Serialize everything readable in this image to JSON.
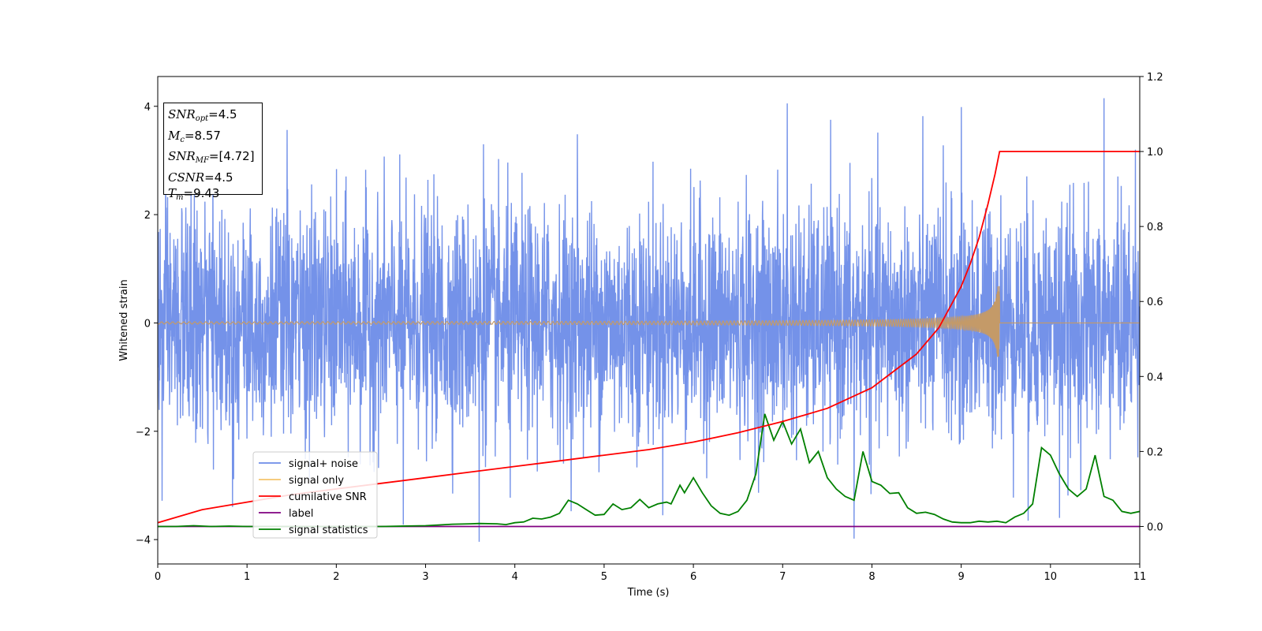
{
  "chart_data": {
    "type": "line",
    "title": "",
    "xlabel": "Time (s)",
    "ylabel": "Whitened strain",
    "y2label": "",
    "xlim": [
      0,
      11
    ],
    "ylim": [
      -4.45,
      4.55
    ],
    "y2lim": [
      -0.1,
      1.2
    ],
    "xticks": [
      0,
      1,
      2,
      3,
      4,
      5,
      6,
      7,
      8,
      9,
      10,
      11
    ],
    "yticks": [
      -4,
      -2,
      0,
      2,
      4
    ],
    "y2ticks": [
      0.0,
      0.2,
      0.4,
      0.6,
      0.8,
      1.0,
      1.2
    ],
    "legend_position": "lower-left",
    "grid": false,
    "merger_time": 9.43,
    "series": [
      {
        "name": "signal+ noise",
        "axis": "left",
        "color": "#6d8ce8",
        "kind": "noise",
        "sigma": 1.0,
        "spikes_high": [
          [
            1.45,
            3.55
          ],
          [
            3.65,
            3.3
          ],
          [
            4.7,
            3.5
          ],
          [
            7.05,
            4.05
          ],
          [
            8.8,
            3.35
          ],
          [
            9.0,
            3.9
          ],
          [
            10.6,
            4.15
          ],
          [
            10.95,
            3.2
          ]
        ],
        "spikes_low": [
          [
            0.05,
            -3.3
          ],
          [
            0.85,
            -2.9
          ],
          [
            2.75,
            -3.75
          ],
          [
            3.6,
            -4.05
          ],
          [
            3.95,
            -3.2
          ],
          [
            7.8,
            -3.95
          ],
          [
            9.75,
            -3.65
          ],
          [
            10.1,
            -3.6
          ]
        ]
      },
      {
        "name": "signal only",
        "axis": "left",
        "color": "#f5c46c",
        "kind": "chirp",
        "peak": 0.68,
        "start_amp": 0.02
      },
      {
        "name": "cumilative SNR",
        "axis": "right",
        "color": "#ff0000",
        "x": [
          0,
          0.5,
          1,
          1.5,
          2,
          2.5,
          3,
          3.5,
          4,
          4.5,
          5,
          5.5,
          6,
          6.5,
          7,
          7.5,
          8,
          8.5,
          8.75,
          9.0,
          9.1,
          9.2,
          9.3,
          9.38,
          9.43,
          11
        ],
        "y": [
          0.01,
          0.045,
          0.065,
          0.085,
          0.1,
          0.115,
          0.13,
          0.145,
          0.16,
          0.175,
          0.19,
          0.205,
          0.225,
          0.25,
          0.28,
          0.315,
          0.37,
          0.46,
          0.53,
          0.64,
          0.7,
          0.77,
          0.86,
          0.94,
          1.0,
          1.0
        ]
      },
      {
        "name": "label",
        "axis": "right",
        "color": "#800080",
        "x": [
          0,
          11
        ],
        "y": [
          0,
          0
        ]
      },
      {
        "name": "signal statistics",
        "axis": "right",
        "color": "#008000",
        "x": [
          0,
          0.2,
          0.4,
          0.6,
          0.8,
          1.0,
          1.5,
          2.0,
          2.5,
          3.0,
          3.3,
          3.5,
          3.6,
          3.8,
          3.9,
          4.0,
          4.1,
          4.2,
          4.3,
          4.4,
          4.5,
          4.6,
          4.7,
          4.8,
          4.9,
          5.0,
          5.1,
          5.2,
          5.3,
          5.4,
          5.5,
          5.6,
          5.7,
          5.75,
          5.85,
          5.9,
          6.0,
          6.1,
          6.2,
          6.3,
          6.4,
          6.5,
          6.6,
          6.7,
          6.8,
          6.9,
          7.0,
          7.1,
          7.2,
          7.3,
          7.4,
          7.5,
          7.6,
          7.7,
          7.8,
          7.9,
          8.0,
          8.1,
          8.2,
          8.3,
          8.4,
          8.5,
          8.6,
          8.7,
          8.8,
          8.9,
          9.0,
          9.1,
          9.2,
          9.3,
          9.4,
          9.5,
          9.6,
          9.7,
          9.8,
          9.9,
          10.0,
          10.1,
          10.2,
          10.3,
          10.4,
          10.5,
          10.6,
          10.7,
          10.8,
          10.9,
          11.0
        ],
        "y": [
          0.0,
          0.0,
          0.002,
          0.0,
          0.001,
          0.0,
          0.0,
          0.0,
          0.0,
          0.002,
          0.006,
          0.007,
          0.008,
          0.007,
          0.005,
          0.01,
          0.012,
          0.022,
          0.02,
          0.025,
          0.035,
          0.07,
          0.06,
          0.045,
          0.03,
          0.032,
          0.06,
          0.045,
          0.05,
          0.072,
          0.05,
          0.06,
          0.065,
          0.06,
          0.11,
          0.09,
          0.13,
          0.09,
          0.055,
          0.035,
          0.03,
          0.04,
          0.07,
          0.14,
          0.3,
          0.23,
          0.28,
          0.22,
          0.26,
          0.17,
          0.2,
          0.13,
          0.1,
          0.08,
          0.07,
          0.2,
          0.12,
          0.11,
          0.088,
          0.09,
          0.05,
          0.035,
          0.038,
          0.032,
          0.02,
          0.012,
          0.01,
          0.01,
          0.014,
          0.012,
          0.014,
          0.01,
          0.025,
          0.035,
          0.06,
          0.21,
          0.19,
          0.14,
          0.1,
          0.08,
          0.1,
          0.19,
          0.08,
          0.07,
          0.04,
          0.035,
          0.04
        ]
      }
    ]
  },
  "info_box": {
    "snr_opt_sym": "SNR",
    "snr_opt_sub": "opt",
    "snr_opt_val": "=4.5",
    "mc_sym": "M",
    "mc_sub": "c",
    "mc_val": "=8.57",
    "snr_mf_sym": "SNR",
    "snr_mf_sub": "MF",
    "snr_mf_val": "=[4.72]",
    "csnr_sym": "CSNR",
    "csnr_val": "=4.5",
    "tm_sym": "T",
    "tm_sub": "m",
    "tm_val": "=9.43"
  }
}
